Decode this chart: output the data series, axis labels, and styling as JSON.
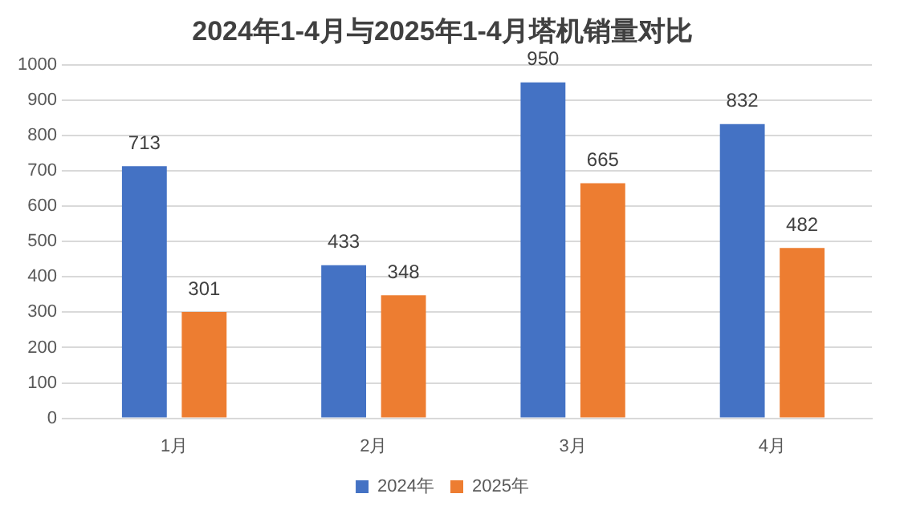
{
  "chart_data": {
    "type": "bar",
    "title": "2024年1-4月与2025年1-4月塔机销量对比",
    "categories": [
      "1月",
      "2月",
      "3月",
      "4月"
    ],
    "series": [
      {
        "name": "2024年",
        "color": "#4472c4",
        "values": [
          713,
          433,
          950,
          832
        ]
      },
      {
        "name": "2025年",
        "color": "#ed7d31",
        "values": [
          301,
          348,
          665,
          482
        ]
      }
    ],
    "ylim": [
      0,
      1000
    ],
    "yticks": [
      0,
      100,
      200,
      300,
      400,
      500,
      600,
      700,
      800,
      900,
      1000
    ],
    "grid": "y",
    "legend": "bottom",
    "data_labels": true
  }
}
